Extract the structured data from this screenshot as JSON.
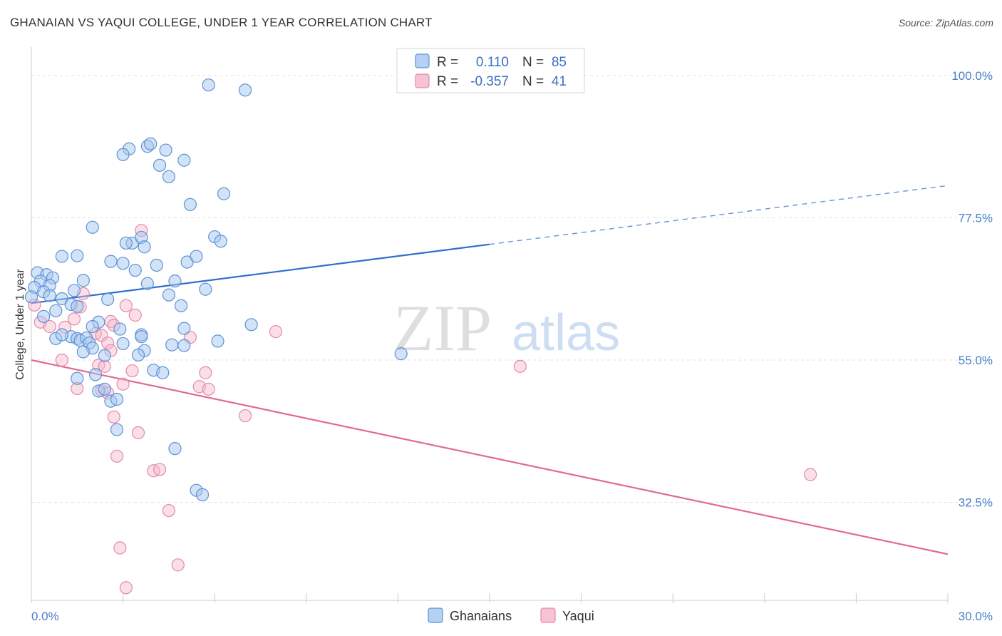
{
  "header": {
    "title": "GHANAIAN VS YAQUI COLLEGE, UNDER 1 YEAR CORRELATION CHART",
    "source": "Source: ZipAtlas.com"
  },
  "watermark": {
    "zip": "ZIP",
    "atlas": "atlas"
  },
  "colors": {
    "ghanaians_fill": "#a8c8f0",
    "ghanaians_stroke": "#5d92d6",
    "ghanaians_line": "#2f6fcc",
    "yaqui_fill": "#f5b8cc",
    "yaqui_stroke": "#e589a8",
    "yaqui_line": "#e06a96"
  },
  "legend": {
    "row1": {
      "r_label": "R =",
      "r_value": "0.110",
      "n_label": "N =",
      "n_value": "85"
    },
    "row2": {
      "r_label": "R =",
      "r_value": "-0.357",
      "n_label": "N =",
      "n_value": "41"
    }
  },
  "chart_data": {
    "type": "scatter",
    "title": "GHANAIAN VS YAQUI COLLEGE, UNDER 1 YEAR CORRELATION CHART",
    "xlabel": "",
    "ylabel": "College, Under 1 year",
    "xlim": [
      0,
      30
    ],
    "ylim": [
      17.0,
      104.5
    ],
    "x_tick_labels": [
      "0.0%",
      "30.0%"
    ],
    "y_ticks": [
      32.5,
      55.0,
      77.5,
      100.0
    ],
    "y_tick_labels": [
      "32.5%",
      "55.0%",
      "77.5%",
      "100.0%"
    ],
    "grid": true,
    "legend_position": "top-center",
    "series": [
      {
        "name": "Ghanaians",
        "r": 0.11,
        "n": 85,
        "trend": {
          "x0": 0,
          "y0": 64.0,
          "x1": 15,
          "y1": 73.3,
          "dashed_to_x": 30,
          "dashed_to_y": 82.6
        },
        "points": [
          [
            5.8,
            98.5
          ],
          [
            7.0,
            97.7
          ],
          [
            3.2,
            88.4
          ],
          [
            3.0,
            87.5
          ],
          [
            3.8,
            88.8
          ],
          [
            3.9,
            89.2
          ],
          [
            4.4,
            88.2
          ],
          [
            4.2,
            85.8
          ],
          [
            5.0,
            86.6
          ],
          [
            4.5,
            84.0
          ],
          [
            6.3,
            81.3
          ],
          [
            5.2,
            79.6
          ],
          [
            2.0,
            76.0
          ],
          [
            3.3,
            73.5
          ],
          [
            3.1,
            73.5
          ],
          [
            3.6,
            74.4
          ],
          [
            3.7,
            72.9
          ],
          [
            6.0,
            74.5
          ],
          [
            6.2,
            73.8
          ],
          [
            1.5,
            71.5
          ],
          [
            1.0,
            71.4
          ],
          [
            2.6,
            70.6
          ],
          [
            3.0,
            70.3
          ],
          [
            4.1,
            70.0
          ],
          [
            5.1,
            70.5
          ],
          [
            5.4,
            71.4
          ],
          [
            3.4,
            69.2
          ],
          [
            0.2,
            68.8
          ],
          [
            0.5,
            68.5
          ],
          [
            0.7,
            68.0
          ],
          [
            1.7,
            67.6
          ],
          [
            0.3,
            67.5
          ],
          [
            0.6,
            66.8
          ],
          [
            1.4,
            66.0
          ],
          [
            3.8,
            67.1
          ],
          [
            4.7,
            67.5
          ],
          [
            0.1,
            66.5
          ],
          [
            0.4,
            65.8
          ],
          [
            0.6,
            65.2
          ],
          [
            0.0,
            65.0
          ],
          [
            1.0,
            64.7
          ],
          [
            2.5,
            64.6
          ],
          [
            4.5,
            65.3
          ],
          [
            5.7,
            66.2
          ],
          [
            1.3,
            63.8
          ],
          [
            1.5,
            63.5
          ],
          [
            4.9,
            63.6
          ],
          [
            0.8,
            62.8
          ],
          [
            0.4,
            61.9
          ],
          [
            2.2,
            61.0
          ],
          [
            2.0,
            60.3
          ],
          [
            2.9,
            59.9
          ],
          [
            3.6,
            59.0
          ],
          [
            5.0,
            60.0
          ],
          [
            7.2,
            60.6
          ],
          [
            1.3,
            58.7
          ],
          [
            1.5,
            58.4
          ],
          [
            1.6,
            58.1
          ],
          [
            1.8,
            58.5
          ],
          [
            1.9,
            57.7
          ],
          [
            3.6,
            58.7
          ],
          [
            0.8,
            58.4
          ],
          [
            4.6,
            57.4
          ],
          [
            5.0,
            57.3
          ],
          [
            6.1,
            58.0
          ],
          [
            2.0,
            56.9
          ],
          [
            3.0,
            57.6
          ],
          [
            3.7,
            56.5
          ],
          [
            1.7,
            56.3
          ],
          [
            2.4,
            55.7
          ],
          [
            3.5,
            55.8
          ],
          [
            4.0,
            53.4
          ],
          [
            4.3,
            53.0
          ],
          [
            1.5,
            52.1
          ],
          [
            2.1,
            52.7
          ],
          [
            2.2,
            50.1
          ],
          [
            2.4,
            50.4
          ],
          [
            2.6,
            48.5
          ],
          [
            2.8,
            48.8
          ],
          [
            2.8,
            44.0
          ],
          [
            4.7,
            41.0
          ],
          [
            5.4,
            34.4
          ],
          [
            5.6,
            33.7
          ],
          [
            12.1,
            56.0
          ],
          [
            1.0,
            59.0
          ]
        ]
      },
      {
        "name": "Yaqui",
        "r": -0.357,
        "n": 41,
        "trend": {
          "x0": 0,
          "y0": 55.0,
          "x1": 30,
          "y1": 24.3
        },
        "points": [
          [
            3.6,
            75.5
          ],
          [
            1.7,
            65.5
          ],
          [
            0.1,
            63.7
          ],
          [
            3.1,
            63.6
          ],
          [
            1.6,
            63.4
          ],
          [
            3.4,
            62.1
          ],
          [
            1.4,
            61.5
          ],
          [
            2.6,
            61.1
          ],
          [
            0.3,
            61.0
          ],
          [
            2.7,
            60.5
          ],
          [
            0.6,
            60.3
          ],
          [
            1.1,
            60.2
          ],
          [
            2.1,
            59.2
          ],
          [
            2.3,
            58.9
          ],
          [
            2.5,
            57.7
          ],
          [
            2.6,
            56.5
          ],
          [
            8.0,
            59.5
          ],
          [
            5.2,
            58.6
          ],
          [
            1.0,
            55.0
          ],
          [
            2.2,
            54.2
          ],
          [
            2.4,
            54.0
          ],
          [
            3.3,
            53.3
          ],
          [
            16.0,
            54.0
          ],
          [
            5.7,
            53.0
          ],
          [
            3.0,
            51.2
          ],
          [
            1.5,
            50.5
          ],
          [
            2.3,
            50.2
          ],
          [
            5.5,
            50.8
          ],
          [
            5.8,
            50.4
          ],
          [
            2.5,
            49.8
          ],
          [
            7.0,
            46.2
          ],
          [
            2.7,
            46.0
          ],
          [
            3.5,
            43.5
          ],
          [
            2.8,
            39.8
          ],
          [
            4.0,
            37.5
          ],
          [
            4.2,
            37.7
          ],
          [
            25.5,
            36.9
          ],
          [
            4.5,
            31.2
          ],
          [
            2.9,
            25.3
          ],
          [
            4.8,
            22.6
          ],
          [
            3.1,
            19.0
          ]
        ]
      }
    ]
  },
  "bottom_legend": {
    "item1": "Ghanaians",
    "item2": "Yaqui"
  }
}
